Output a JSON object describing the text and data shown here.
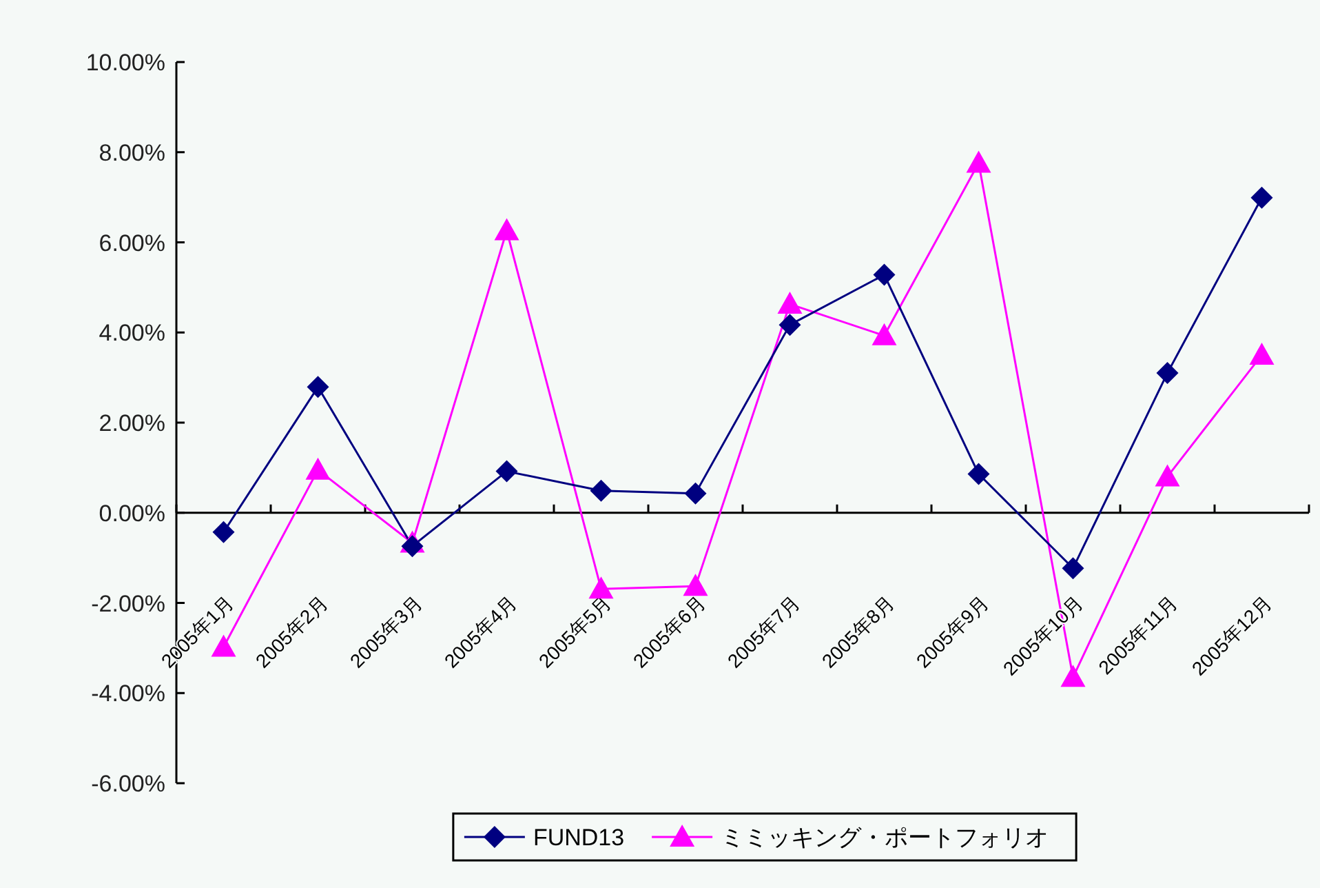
{
  "chart_data": {
    "type": "line",
    "categories": [
      "2005年1月",
      "2005年2月",
      "2005年3月",
      "2005年4月",
      "2005年5月",
      "2005年6月",
      "2005年7月",
      "2005年8月",
      "2005年9月",
      "2005年10月",
      "2005年11月",
      "2005年12月"
    ],
    "series": [
      {
        "name": "FUND13",
        "color": "#000080",
        "marker": "diamond",
        "values": [
          -0.43,
          2.79,
          -0.74,
          0.92,
          0.49,
          0.43,
          4.17,
          5.28,
          0.86,
          -1.23,
          3.1,
          6.99
        ]
      },
      {
        "name": "ミミッキング・ポートフォリオ",
        "color": "#ff00ff",
        "marker": "triangle",
        "values": [
          -2.98,
          0.95,
          -0.67,
          6.26,
          -1.69,
          -1.63,
          4.63,
          3.93,
          7.76,
          -3.65,
          0.8,
          3.5
        ]
      }
    ],
    "ylim": [
      -6,
      10
    ],
    "yticks": [
      {
        "value": -6,
        "label": "-6.00%"
      },
      {
        "value": -4,
        "label": "-4.00%"
      },
      {
        "value": -2,
        "label": "-2.00%"
      },
      {
        "value": 0,
        "label": "0.00%"
      },
      {
        "value": 2,
        "label": "2.00%"
      },
      {
        "value": 4,
        "label": "4.00%"
      },
      {
        "value": 6,
        "label": "6.00%"
      },
      {
        "value": 8,
        "label": "8.00%"
      },
      {
        "value": 10,
        "label": "10.00%"
      }
    ],
    "legend": "bottom"
  }
}
